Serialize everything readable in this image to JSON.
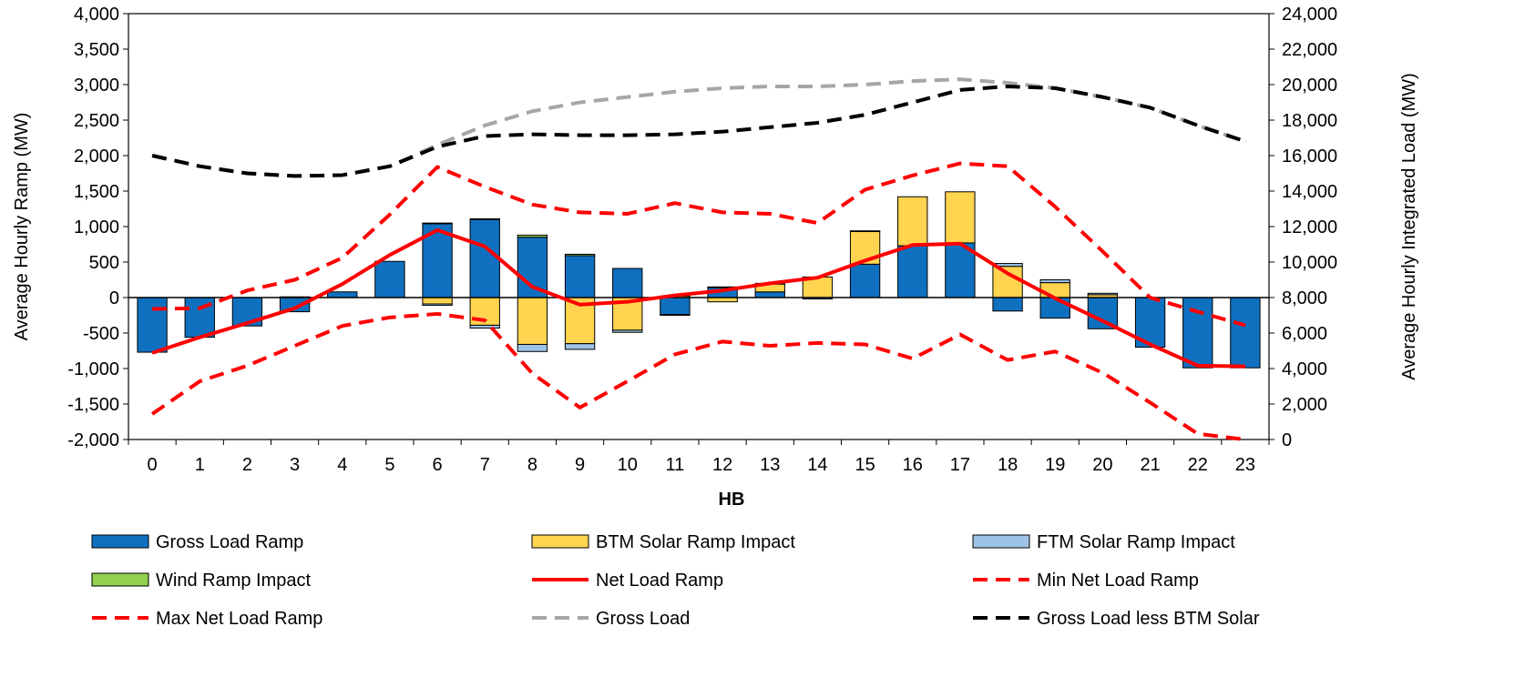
{
  "chart_data": {
    "type": "bar",
    "x": [
      "0",
      "1",
      "2",
      "3",
      "4",
      "5",
      "6",
      "7",
      "8",
      "9",
      "10",
      "11",
      "12",
      "13",
      "14",
      "15",
      "16",
      "17",
      "18",
      "19",
      "20",
      "21",
      "22",
      "23"
    ],
    "xlabel": "HB",
    "ylabel": "Average Hourly Ramp (MW)",
    "y2label": "Average Hourly Integrated Load (MW)",
    "ylim": [
      -2000,
      4000
    ],
    "y2lim": [
      0,
      24000
    ],
    "yticks": [
      "4,000",
      "3,500",
      "3,000",
      "2,500",
      "2,000",
      "1,500",
      "1,000",
      "500",
      "0",
      "-500",
      "-1,000",
      "-1,500",
      "-2,000"
    ],
    "y2ticks": [
      "24,000",
      "22,000",
      "20,000",
      "18,000",
      "16,000",
      "14,000",
      "12,000",
      "10,000",
      "8,000",
      "6,000",
      "4,000",
      "2,000",
      "0"
    ],
    "grid": false,
    "legend_position": "bottom",
    "bar_series": [
      {
        "name": "Gross Load Ramp",
        "color": "#1070C0",
        "values": [
          -770,
          -560,
          -400,
          -200,
          80,
          510,
          1040,
          1100,
          850,
          590,
          410,
          -240,
          140,
          80,
          -20,
          470,
          730,
          770,
          -190,
          -290,
          -440,
          -700,
          -990,
          -990
        ]
      },
      {
        "name": "BTM Solar Ramp Impact",
        "color": "#FFD44F",
        "values": [
          0,
          0,
          0,
          10,
          0,
          0,
          -90,
          -390,
          -660,
          -650,
          -460,
          20,
          -60,
          110,
          290,
          460,
          690,
          720,
          440,
          210,
          40,
          0,
          0,
          0
        ]
      },
      {
        "name": "FTM Solar Ramp Impact",
        "color": "#9DC3E6",
        "values": [
          0,
          0,
          0,
          0,
          0,
          0,
          -20,
          -40,
          -100,
          -80,
          -30,
          -10,
          10,
          10,
          0,
          0,
          0,
          0,
          40,
          40,
          20,
          0,
          0,
          0
        ]
      },
      {
        "name": "Wind Ramp Impact",
        "color": "#92D050",
        "values": [
          0,
          0,
          0,
          0,
          0,
          0,
          10,
          10,
          30,
          20,
          0,
          0,
          0,
          0,
          0,
          10,
          0,
          0,
          0,
          0,
          0,
          0,
          0,
          0
        ]
      }
    ],
    "line_series": [
      {
        "name": "Net Load Ramp",
        "color": "#FF0000",
        "style": "solid",
        "axis": "left",
        "values": [
          -780,
          -560,
          -360,
          -150,
          190,
          600,
          950,
          720,
          150,
          -100,
          -60,
          30,
          100,
          200,
          280,
          520,
          740,
          760,
          340,
          -10,
          -330,
          -660,
          -960,
          -970
        ]
      },
      {
        "name": "Min Net Load Ramp",
        "color": "#FF0000",
        "style": "dashed",
        "axis": "left",
        "values": [
          -1640,
          -1180,
          -960,
          -680,
          -400,
          -280,
          -230,
          -320,
          -1070,
          -1550,
          -1180,
          -800,
          -620,
          -680,
          -640,
          -660,
          -860,
          -520,
          -880,
          -760,
          -1060,
          -1480,
          -1920,
          -2000
        ]
      },
      {
        "name": "Max Net Load Ramp",
        "color": "#FF0000",
        "style": "dashed",
        "axis": "left",
        "values": [
          -160,
          -150,
          100,
          250,
          560,
          1170,
          1840,
          1560,
          1310,
          1200,
          1180,
          1330,
          1200,
          1180,
          1050,
          1520,
          1720,
          1890,
          1850,
          1280,
          650,
          0,
          -200,
          -390
        ]
      },
      {
        "name": "Gross Load",
        "color": "#A6A6A6",
        "style": "dashed",
        "axis": "right",
        "values": [
          16000,
          15400,
          15000,
          14850,
          14900,
          15400,
          16600,
          17700,
          18500,
          19000,
          19300,
          19600,
          19800,
          19900,
          19900,
          20000,
          20200,
          20300,
          20100,
          19800,
          19300,
          18700,
          17700,
          16800
        ]
      },
      {
        "name": "Gross Load less BTM Solar",
        "color": "#000000",
        "style": "dashed",
        "axis": "right",
        "values": [
          16000,
          15400,
          15000,
          14850,
          14900,
          15400,
          16500,
          17100,
          17200,
          17150,
          17150,
          17200,
          17350,
          17600,
          17850,
          18300,
          19000,
          19700,
          19900,
          19800,
          19300,
          18700,
          17700,
          16800
        ]
      }
    ],
    "legend": [
      "Gross Load Ramp",
      "BTM Solar Ramp Impact",
      "FTM Solar Ramp Impact",
      "Wind Ramp Impact",
      "Net Load Ramp",
      "Min Net Load Ramp",
      "Max Net Load Ramp",
      "Gross Load",
      "Gross Load less BTM Solar"
    ]
  }
}
